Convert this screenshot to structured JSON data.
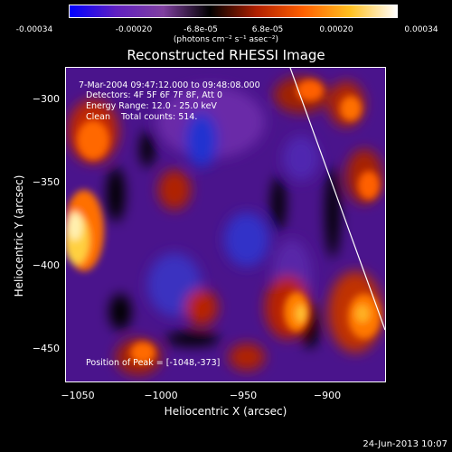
{
  "colorbar": {
    "ticks": [
      "-0.00034",
      "-0.00020",
      "-6.8e-05",
      "6.8e-05",
      "0.00020",
      "0.00034"
    ],
    "units": "(photons cm⁻² s⁻¹ asec⁻²)",
    "colors": [
      "#0000ff",
      "#6020c0",
      "#8040a0",
      "#000000",
      "#b02000",
      "#ff6000",
      "#ffc020",
      "#ffffff"
    ]
  },
  "title": "Reconstructed RHESSI Image",
  "annotations": {
    "time_range": "7-Mar-2004 09:47:12.000 to 09:48:08.000",
    "detectors": "Detectors: 4F 5F 6F 7F 8F, Att 0",
    "energy": "Energy Range: 12.0 - 25.0 keV",
    "clean": "Clean    Total counts: 514.",
    "peak": "Position of Peak = [-1048,-373]"
  },
  "axes": {
    "xlabel": "Heliocentric X (arcsec)",
    "ylabel": "Heliocentric Y (arcsec)",
    "xticks": [
      "−1050",
      "−1000",
      "−950",
      "−900"
    ],
    "yticks": [
      "−300",
      "−350",
      "−400",
      "−450"
    ],
    "xlim": [
      -1058,
      -866
    ],
    "ylim": [
      -473,
      -283
    ]
  },
  "date_stamp": "24-Jun-2013 10:07"
}
